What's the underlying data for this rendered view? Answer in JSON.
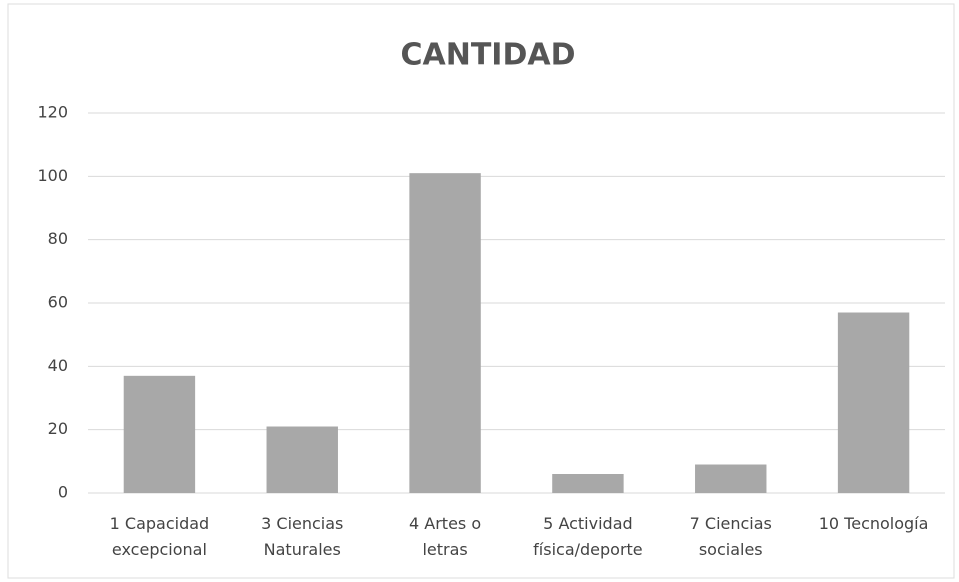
{
  "chart_data": {
    "type": "bar",
    "title": "CANTIDAD",
    "categories": [
      "1 Capacidad\nexcepcional",
      "3 Ciencias\nNaturales",
      "4 Artes o\nletras",
      "5  Actividad\nfísica/deporte",
      "7 Ciencias\nsociales",
      "10 Tecnología"
    ],
    "values": [
      37,
      21,
      101,
      6,
      9,
      57
    ],
    "color": "#a8a8a8",
    "ylim": [
      0,
      120
    ],
    "yticks": [
      0,
      20,
      40,
      60,
      80,
      100,
      120
    ],
    "grid": true
  }
}
